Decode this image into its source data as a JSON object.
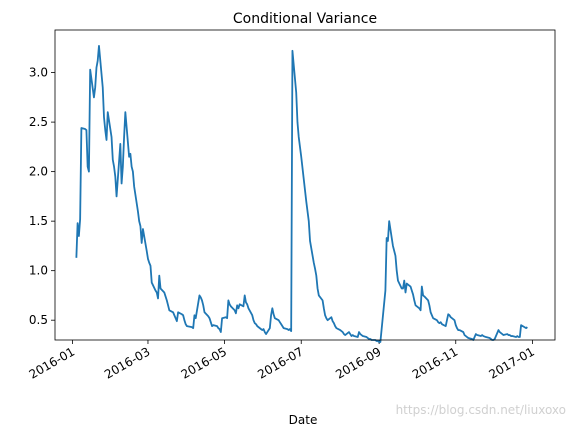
{
  "chart_data": {
    "type": "line",
    "title": "Conditional Variance",
    "xlabel": "Date",
    "watermark": "https://blog.csdn.net/liuxoxo",
    "color": "#1f77b4",
    "x": [
      "2016-01-04",
      "2016-01-05",
      "2016-01-06",
      "2016-01-07",
      "2016-01-08",
      "2016-01-11",
      "2016-01-12",
      "2016-01-13",
      "2016-01-14",
      "2016-01-15",
      "2016-01-18",
      "2016-01-19",
      "2016-01-20",
      "2016-01-21",
      "2016-01-22",
      "2016-01-25",
      "2016-01-26",
      "2016-01-27",
      "2016-01-28",
      "2016-01-29",
      "2016-02-01",
      "2016-02-02",
      "2016-02-03",
      "2016-02-04",
      "2016-02-05",
      "2016-02-08",
      "2016-02-09",
      "2016-02-10",
      "2016-02-11",
      "2016-02-12",
      "2016-02-15",
      "2016-02-16",
      "2016-02-17",
      "2016-02-18",
      "2016-02-19",
      "2016-02-22",
      "2016-02-23",
      "2016-02-24",
      "2016-02-25",
      "2016-02-26",
      "2016-02-29",
      "2016-03-01",
      "2016-03-02",
      "2016-03-03",
      "2016-03-04",
      "2016-03-07",
      "2016-03-08",
      "2016-03-09",
      "2016-03-10",
      "2016-03-11",
      "2016-03-14",
      "2016-03-15",
      "2016-03-16",
      "2016-03-17",
      "2016-03-18",
      "2016-03-21",
      "2016-03-22",
      "2016-03-23",
      "2016-03-24",
      "2016-03-25",
      "2016-03-28",
      "2016-03-29",
      "2016-03-30",
      "2016-03-31",
      "2016-04-01",
      "2016-04-05",
      "2016-04-06",
      "2016-04-07",
      "2016-04-08",
      "2016-04-11",
      "2016-04-12",
      "2016-04-13",
      "2016-04-14",
      "2016-04-15",
      "2016-04-18",
      "2016-04-19",
      "2016-04-20",
      "2016-04-21",
      "2016-04-22",
      "2016-04-25",
      "2016-04-26",
      "2016-04-27",
      "2016-04-28",
      "2016-04-29",
      "2016-05-02",
      "2016-05-03",
      "2016-05-04",
      "2016-05-05",
      "2016-05-06",
      "2016-05-09",
      "2016-05-10",
      "2016-05-11",
      "2016-05-12",
      "2016-05-13",
      "2016-05-16",
      "2016-05-17",
      "2016-05-18",
      "2016-05-19",
      "2016-05-20",
      "2016-05-23",
      "2016-05-24",
      "2016-05-25",
      "2016-05-26",
      "2016-05-27",
      "2016-05-30",
      "2016-05-31",
      "2016-06-01",
      "2016-06-02",
      "2016-06-03",
      "2016-06-06",
      "2016-06-07",
      "2016-06-08",
      "2016-06-09",
      "2016-06-10",
      "2016-06-13",
      "2016-06-14",
      "2016-06-15",
      "2016-06-16",
      "2016-06-17",
      "2016-06-20",
      "2016-06-21",
      "2016-06-22",
      "2016-06-23",
      "2016-06-24",
      "2016-06-27",
      "2016-06-28",
      "2016-06-29",
      "2016-06-30",
      "2016-07-01",
      "2016-07-05",
      "2016-07-06",
      "2016-07-07",
      "2016-07-08",
      "2016-07-11",
      "2016-07-12",
      "2016-07-13",
      "2016-07-14",
      "2016-07-15",
      "2016-07-18",
      "2016-07-19",
      "2016-07-20",
      "2016-07-21",
      "2016-07-22",
      "2016-07-25",
      "2016-07-26",
      "2016-07-27",
      "2016-07-28",
      "2016-07-29",
      "2016-08-01",
      "2016-08-02",
      "2016-08-03",
      "2016-08-04",
      "2016-08-05",
      "2016-08-08",
      "2016-08-09",
      "2016-08-10",
      "2016-08-11",
      "2016-08-12",
      "2016-08-15",
      "2016-08-16",
      "2016-08-17",
      "2016-08-18",
      "2016-08-19",
      "2016-08-22",
      "2016-08-23",
      "2016-08-24",
      "2016-08-25",
      "2016-08-26",
      "2016-08-29",
      "2016-08-30",
      "2016-08-31",
      "2016-09-01",
      "2016-09-02",
      "2016-09-06",
      "2016-09-07",
      "2016-09-08",
      "2016-09-09",
      "2016-09-12",
      "2016-09-13",
      "2016-09-14",
      "2016-09-15",
      "2016-09-16",
      "2016-09-19",
      "2016-09-20",
      "2016-09-21",
      "2016-09-22",
      "2016-09-23",
      "2016-09-26",
      "2016-09-27",
      "2016-09-28",
      "2016-09-29",
      "2016-09-30",
      "2016-10-03",
      "2016-10-04",
      "2016-10-05",
      "2016-10-06",
      "2016-10-07",
      "2016-10-10",
      "2016-10-11",
      "2016-10-12",
      "2016-10-13",
      "2016-10-14",
      "2016-10-17",
      "2016-10-18",
      "2016-10-19",
      "2016-10-20",
      "2016-10-21",
      "2016-10-24",
      "2016-10-25",
      "2016-10-26",
      "2016-10-27",
      "2016-10-28",
      "2016-10-31",
      "2016-11-01",
      "2016-11-02",
      "2016-11-03",
      "2016-11-04",
      "2016-11-07",
      "2016-11-08",
      "2016-11-09",
      "2016-11-10",
      "2016-11-11",
      "2016-11-14",
      "2016-11-15",
      "2016-11-16",
      "2016-11-17",
      "2016-11-18",
      "2016-11-21",
      "2016-11-22",
      "2016-11-23",
      "2016-11-25",
      "2016-11-28",
      "2016-11-29",
      "2016-11-30",
      "2016-12-01",
      "2016-12-02",
      "2016-12-05",
      "2016-12-06",
      "2016-12-07",
      "2016-12-08",
      "2016-12-09",
      "2016-12-12",
      "2016-12-13",
      "2016-12-14",
      "2016-12-15",
      "2016-12-16",
      "2016-12-19",
      "2016-12-20",
      "2016-12-21",
      "2016-12-22",
      "2016-12-23",
      "2016-12-27",
      "2016-12-28"
    ],
    "values": [
      1.13,
      1.48,
      1.35,
      1.52,
      2.44,
      2.43,
      2.42,
      2.05,
      2.0,
      3.03,
      2.75,
      2.85,
      3.05,
      3.12,
      3.27,
      2.85,
      2.55,
      2.42,
      2.32,
      2.6,
      2.35,
      2.12,
      2.05,
      1.95,
      1.75,
      2.28,
      1.88,
      2.05,
      2.35,
      2.6,
      2.15,
      2.18,
      2.05,
      2.0,
      1.85,
      1.6,
      1.5,
      1.45,
      1.28,
      1.42,
      1.2,
      1.12,
      1.08,
      1.05,
      0.88,
      0.8,
      0.78,
      0.72,
      0.95,
      0.82,
      0.78,
      0.74,
      0.7,
      0.65,
      0.6,
      0.58,
      0.55,
      0.52,
      0.49,
      0.58,
      0.56,
      0.55,
      0.5,
      0.46,
      0.44,
      0.43,
      0.42,
      0.55,
      0.52,
      0.75,
      0.73,
      0.7,
      0.65,
      0.58,
      0.54,
      0.52,
      0.48,
      0.44,
      0.45,
      0.44,
      0.42,
      0.41,
      0.38,
      0.52,
      0.53,
      0.52,
      0.7,
      0.66,
      0.64,
      0.6,
      0.57,
      0.65,
      0.62,
      0.66,
      0.64,
      0.75,
      0.68,
      0.66,
      0.62,
      0.55,
      0.5,
      0.47,
      0.46,
      0.44,
      0.41,
      0.4,
      0.41,
      0.38,
      0.36,
      0.42,
      0.55,
      0.62,
      0.56,
      0.52,
      0.5,
      0.48,
      0.46,
      0.44,
      0.42,
      0.41,
      0.4,
      0.41,
      0.39,
      3.22,
      2.8,
      2.5,
      2.35,
      2.25,
      2.15,
      1.7,
      1.6,
      1.5,
      1.3,
      1.08,
      1.02,
      0.95,
      0.82,
      0.75,
      0.7,
      0.62,
      0.55,
      0.52,
      0.5,
      0.53,
      0.49,
      0.47,
      0.44,
      0.42,
      0.4,
      0.39,
      0.38,
      0.36,
      0.35,
      0.38,
      0.36,
      0.34,
      0.35,
      0.34,
      0.33,
      0.38,
      0.36,
      0.35,
      0.34,
      0.33,
      0.32,
      0.31,
      0.31,
      0.3,
      0.3,
      0.29,
      0.29,
      0.28,
      0.28,
      0.8,
      1.33,
      1.3,
      1.5,
      1.25,
      1.2,
      1.15,
      1.0,
      0.9,
      0.82,
      0.82,
      0.9,
      0.78,
      0.87,
      0.84,
      0.8,
      0.76,
      0.7,
      0.65,
      0.62,
      0.6,
      0.84,
      0.75,
      0.74,
      0.7,
      0.65,
      0.58,
      0.55,
      0.52,
      0.5,
      0.48,
      0.47,
      0.48,
      0.46,
      0.44,
      0.5,
      0.56,
      0.55,
      0.53,
      0.5,
      0.45,
      0.42,
      0.4,
      0.4,
      0.38,
      0.35,
      0.34,
      0.33,
      0.32,
      0.31,
      0.3,
      0.33,
      0.36,
      0.35,
      0.34,
      0.35,
      0.34,
      0.33,
      0.32,
      0.31,
      0.3,
      0.3,
      0.31,
      0.4,
      0.38,
      0.37,
      0.36,
      0.35,
      0.36,
      0.35,
      0.35,
      0.34,
      0.34,
      0.33,
      0.34,
      0.33,
      0.33,
      0.45,
      0.42,
      0.43
    ],
    "xlim": [
      "2015-12-18",
      "2017-01-19"
    ],
    "xticks": [
      "2016-01",
      "2016-03",
      "2016-05",
      "2016-07",
      "2016-09",
      "2016-11",
      "2017-01"
    ],
    "ylim": [
      0.3,
      3.43
    ],
    "yticks": [
      0.5,
      {
        "value": 1.0,
        "label": "1.0"
      },
      1.5,
      {
        "value": 2.0,
        "label": "2.0"
      },
      2.5,
      {
        "value": 3.0,
        "label": "3.0"
      }
    ],
    "grid": false
  }
}
